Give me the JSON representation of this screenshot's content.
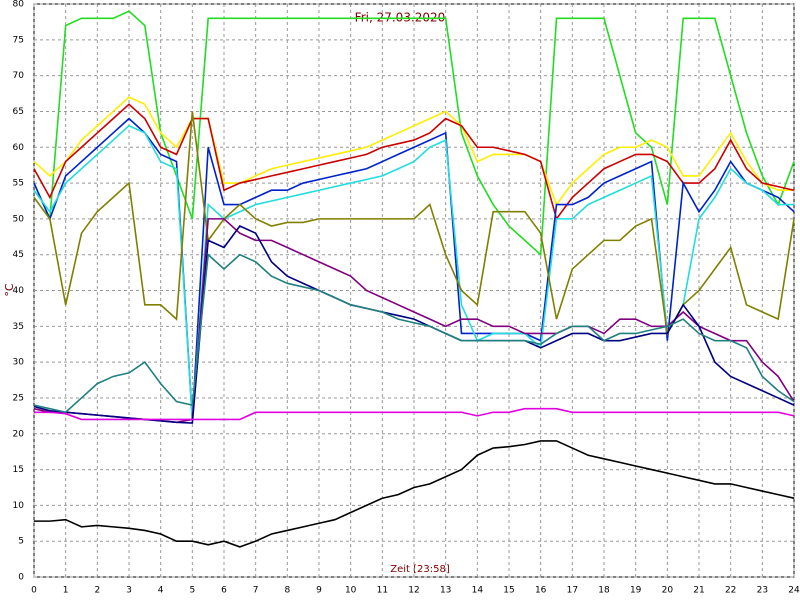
{
  "chart_data": {
    "type": "line",
    "title": "Fri, 27.03.2020",
    "x_label": "Zeit [23:58]",
    "y_label": "°C",
    "x": [
      0,
      0.5,
      1,
      1.5,
      2,
      2.5,
      3,
      3.5,
      4,
      4.5,
      5,
      5.5,
      6,
      6.5,
      7,
      7.5,
      8,
      8.5,
      9,
      9.5,
      10,
      10.5,
      11,
      11.5,
      12,
      12.5,
      13,
      13.5,
      14,
      14.5,
      15,
      15.5,
      16,
      16.5,
      17,
      17.5,
      18,
      18.5,
      19,
      19.5,
      20,
      20.5,
      21,
      21.5,
      22,
      22.5,
      23,
      23.5,
      24
    ],
    "xlim": [
      0,
      24
    ],
    "ylim": [
      0,
      80
    ],
    "xticks": [
      0,
      1,
      2,
      3,
      4,
      5,
      6,
      7,
      8,
      9,
      10,
      11,
      12,
      13,
      14,
      15,
      16,
      17,
      18,
      19,
      20,
      21,
      22,
      23,
      24
    ],
    "yticks": [
      0,
      5,
      10,
      15,
      20,
      25,
      30,
      35,
      40,
      45,
      50,
      55,
      60,
      65,
      70,
      75,
      80
    ],
    "grid": true,
    "series": [
      {
        "color": "#22dd22",
        "values": [
          55,
          50,
          77,
          78,
          78,
          78,
          79,
          77,
          62,
          56,
          50,
          78,
          78,
          78,
          78,
          78,
          78,
          78,
          78,
          78,
          78,
          78,
          78,
          78,
          78,
          78,
          78,
          62,
          56,
          52,
          49,
          47,
          45,
          78,
          78,
          78,
          78,
          70,
          62,
          60,
          52,
          78,
          78,
          78,
          70,
          62,
          56,
          52,
          58
        ]
      },
      {
        "color": "#ffee00",
        "values": [
          58,
          56,
          58,
          61,
          63,
          65,
          67,
          66,
          62,
          60,
          64,
          64,
          55,
          55,
          56,
          57,
          57.5,
          58,
          58.5,
          59,
          59.5,
          60,
          61,
          62,
          63,
          64,
          65,
          63,
          58,
          59,
          59,
          59,
          58,
          52,
          55,
          57,
          59,
          60,
          60,
          61,
          60,
          56,
          56,
          59,
          62,
          58,
          55,
          54,
          54
        ]
      },
      {
        "color": "#cc0000",
        "values": [
          57,
          53,
          58,
          60,
          62,
          64,
          66,
          64,
          60,
          59,
          64,
          64,
          54,
          55,
          55.5,
          56,
          56.5,
          57,
          57.5,
          58,
          58.5,
          59,
          60,
          60.5,
          61,
          62,
          64,
          63,
          60,
          60,
          59.5,
          59,
          58,
          50,
          53,
          55,
          57,
          58,
          59,
          59,
          58,
          55,
          55,
          57,
          61,
          57,
          55,
          54.5,
          54
        ]
      },
      {
        "color": "#0022cc",
        "values": [
          55,
          50,
          56,
          58,
          60,
          62,
          64,
          62,
          59,
          58,
          22,
          60,
          52,
          52,
          53,
          54,
          54,
          55,
          55.5,
          56,
          56.5,
          57,
          58,
          59,
          60,
          61,
          62,
          34,
          34,
          34,
          34,
          34,
          33,
          52,
          52,
          53,
          55,
          56,
          57,
          58,
          33,
          55,
          51,
          54,
          58,
          55,
          54,
          53,
          51
        ]
      },
      {
        "color": "#22dddd",
        "values": [
          54,
          51,
          55,
          57,
          59,
          61,
          63,
          62,
          58,
          57,
          22,
          52,
          50,
          51,
          52,
          52.5,
          53,
          53.5,
          54,
          54.5,
          55,
          55.5,
          56,
          57,
          58,
          60,
          61,
          38,
          33,
          34,
          34,
          34,
          32,
          50,
          50,
          52,
          53,
          54,
          55,
          56,
          34,
          38,
          50,
          53,
          57,
          55,
          54,
          52,
          52
        ]
      },
      {
        "color": "#808000",
        "values": [
          53,
          50,
          38,
          48,
          51,
          53,
          55,
          38,
          38,
          36,
          65,
          47,
          50,
          52,
          50,
          49,
          49.5,
          49.5,
          50,
          50,
          50,
          50,
          50,
          50,
          50,
          52,
          45,
          40,
          38,
          51,
          51,
          51,
          48,
          36,
          43,
          45,
          47,
          47,
          49,
          50,
          34,
          38,
          40,
          43,
          46,
          38,
          37,
          36,
          50
        ]
      },
      {
        "color": "#800080",
        "values": [
          23.5,
          23,
          23,
          22.8,
          22.6,
          22.4,
          22.2,
          22,
          21.8,
          21.6,
          22,
          50,
          50,
          48,
          47,
          47,
          46,
          45,
          44,
          43,
          42,
          40,
          39,
          38,
          37,
          36,
          35,
          36,
          36,
          35,
          35,
          34,
          34,
          34,
          35,
          35,
          34,
          36,
          36,
          35,
          35,
          37,
          35,
          34,
          33,
          33,
          30,
          28,
          24.5
        ]
      },
      {
        "color": "#000080",
        "values": [
          23.8,
          23.2,
          23,
          22.8,
          22.6,
          22.4,
          22.2,
          22,
          21.8,
          21.6,
          21.5,
          47,
          46,
          49,
          48,
          44,
          42,
          41,
          40,
          39,
          38,
          37.5,
          37,
          36.5,
          36,
          35,
          34,
          33,
          33,
          33,
          33,
          33,
          32,
          33,
          34,
          34,
          33,
          33,
          33.5,
          34,
          34,
          38,
          35,
          30,
          28,
          27,
          26,
          25,
          24
        ]
      },
      {
        "color": "#208080",
        "values": [
          24,
          23.5,
          23,
          25,
          27,
          28,
          28.5,
          30,
          27,
          24.5,
          24,
          45,
          43,
          45,
          44,
          42,
          41,
          40.5,
          40,
          39,
          38,
          37.5,
          37,
          36,
          35.5,
          35,
          34,
          33,
          33,
          33,
          33,
          33,
          32.5,
          34,
          35,
          35,
          33,
          34,
          34,
          34.5,
          35,
          36,
          34,
          33,
          33,
          32,
          28,
          26,
          24.5
        ]
      },
      {
        "color": "#e000e0",
        "values": [
          23,
          23,
          22.8,
          22,
          22,
          22,
          22,
          22,
          22,
          22,
          22,
          22,
          22,
          22,
          23,
          23,
          23,
          23,
          23,
          23,
          23,
          23,
          23,
          23,
          23,
          23,
          23,
          23,
          22.5,
          23,
          23,
          23.5,
          23.5,
          23.5,
          23,
          23,
          23,
          23,
          23,
          23,
          23,
          23,
          23,
          23,
          23,
          23,
          23,
          23,
          22.5
        ]
      },
      {
        "color": "#000000",
        "values": [
          7.8,
          7.8,
          8,
          7,
          7.2,
          7,
          6.8,
          6.5,
          6,
          5,
          5,
          4.5,
          5,
          4.2,
          5,
          6,
          6.5,
          7,
          7.5,
          8,
          9,
          10,
          11,
          11.5,
          12.5,
          13,
          14,
          15,
          17,
          18,
          18.2,
          18.5,
          19,
          19,
          18,
          17,
          16.5,
          16,
          15.5,
          15,
          14.5,
          14,
          13.5,
          13,
          13,
          12.5,
          12,
          11.5,
          11
        ]
      }
    ]
  }
}
